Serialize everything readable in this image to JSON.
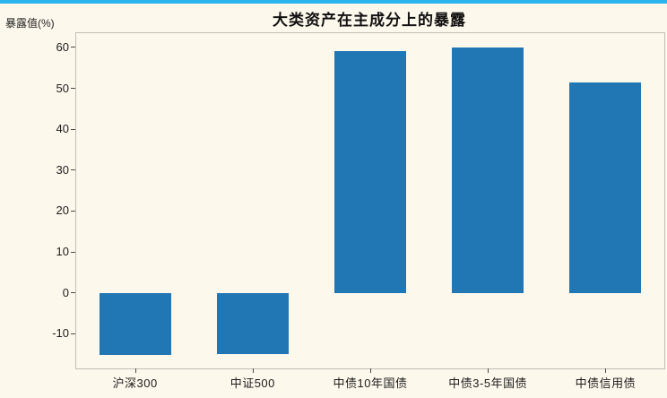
{
  "page": {
    "background_color": "#fdf8ec",
    "top_stripe_color": "#29b4ee",
    "spine_color": "#bfbeb6"
  },
  "chart_data": {
    "type": "bar",
    "title": "大类资产在主成分上的暴露",
    "xlabel": "",
    "ylabel": "暴露值(%)",
    "categories": [
      "沪深300",
      "中证500",
      "中债10年国债",
      "中债3-5年国债",
      "中债信用债"
    ],
    "values": [
      -15.3,
      -15.1,
      59.2,
      59.9,
      51.5
    ],
    "yticks": [
      -10,
      0,
      10,
      20,
      30,
      40,
      50,
      60
    ],
    "ylim": [
      -18.5,
      63.5
    ],
    "bar_color": "#2176b4",
    "grid": false,
    "legend_position": "none"
  }
}
